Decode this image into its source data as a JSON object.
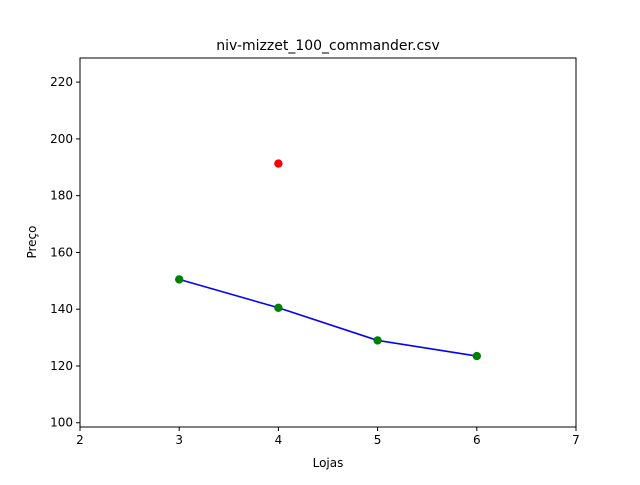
{
  "chart_data": {
    "type": "scatter",
    "title": "niv-mizzet_100_commander.csv",
    "xlabel": "Lojas",
    "ylabel": "Preço",
    "xlim": [
      2,
      7
    ],
    "ylim": [
      98.5,
      228.5
    ],
    "xticks": [
      2,
      3,
      4,
      5,
      6,
      7
    ],
    "yticks": [
      100,
      120,
      140,
      160,
      180,
      200,
      220
    ],
    "grid": false,
    "series": [
      {
        "type": "line",
        "color": "#0000ff",
        "x": [
          3,
          4,
          5,
          6
        ],
        "y": [
          150.5,
          140.5,
          129,
          123.5
        ]
      },
      {
        "type": "scatter",
        "color": "#008000",
        "x": [
          3,
          4,
          5,
          6
        ],
        "y": [
          150.5,
          140.5,
          129,
          123.5
        ]
      },
      {
        "type": "scatter",
        "color": "#ff0000",
        "x": [
          4
        ],
        "y": [
          191.3
        ]
      }
    ]
  }
}
